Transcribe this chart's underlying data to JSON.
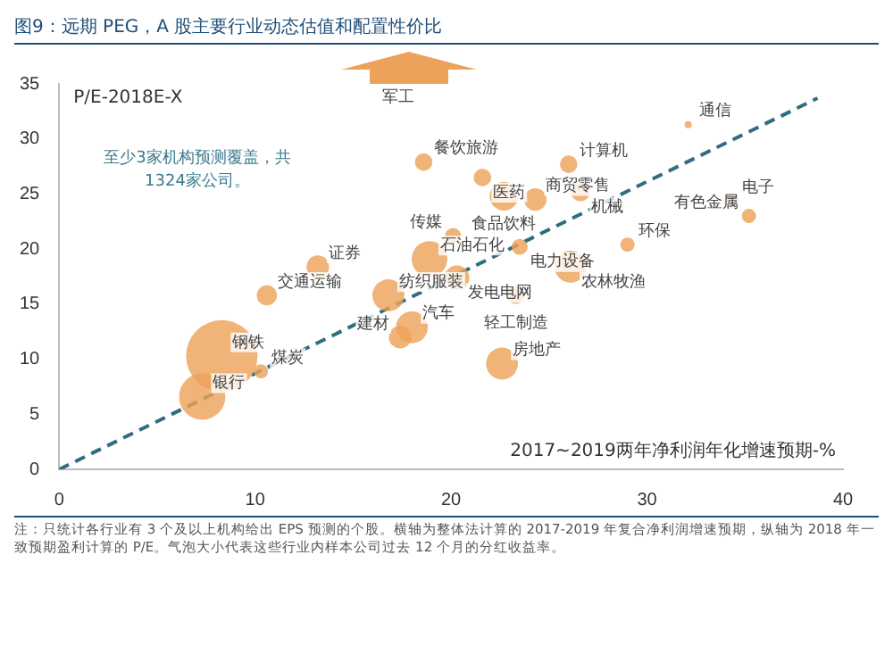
{
  "chart_data": {
    "type": "bubble",
    "title": "图9：远期 PEG，A 股主要行业动态估值和配置性价比",
    "xlabel": "2017~2019两年净利润年化增速预期-%",
    "ylabel": "P/E-2018E-X",
    "xlim": [
      0,
      40
    ],
    "xticks": [
      0,
      10,
      20,
      30,
      40
    ],
    "ylim": [
      0,
      35
    ],
    "yticks": [
      0,
      5,
      10,
      15,
      20,
      25,
      30,
      35
    ],
    "grid": false,
    "legend": false,
    "series": [
      {
        "type": "bubble",
        "color": "#eda25a",
        "x": [
          18.6,
          21.6,
          22.7,
          24.3,
          26.0,
          26.6,
          32.1,
          34.3,
          35.2,
          20.1,
          23.5,
          29.0,
          18.9,
          20.3,
          13.2,
          26.1,
          10.6,
          16.8,
          18.0,
          23.3,
          17.4,
          22.6,
          7.3,
          8.3,
          10.3
        ],
        "values": [
          27.9,
          26.5,
          24.8,
          24.5,
          27.7,
          25.2,
          31.3,
          24.4,
          23.0,
          21.2,
          20.2,
          20.4,
          19.1,
          17.4,
          18.4,
          18.4,
          15.8,
          15.8,
          12.9,
          15.8,
          12.0,
          9.6,
          6.6,
          10.3,
          8.9
        ],
        "sizes": [
          0.06,
          0.06,
          0.16,
          0.1,
          0.06,
          0.07,
          0.01,
          0.05,
          0.04,
          0.05,
          0.05,
          0.04,
          0.25,
          0.12,
          0.1,
          0.2,
          0.08,
          0.2,
          0.2,
          0.06,
          0.1,
          0.2,
          0.42,
          1,
          0.04
        ]
      },
      {
        "type": "line",
        "color": "#2e6e80",
        "line_style": "dashed",
        "x": [
          0,
          38.7
        ],
        "values": [
          0,
          33.7
        ]
      }
    ],
    "annotations": [
      "军工",
      "至少3家机构预测覆盖，共1324家公司。",
      "注：只统计各行业有 3 个及以上机构给出 EPS 预测的个股。横轴为整体法计算的 2017-2019 年复合净利润增速预期，纵轴为 2018 年一致预期盈利计算的 P/E。气泡大小代表这些行业内样本公司过去 12 个月的分红收益率。",
      {
        "text": "餐饮旅游",
        "x": 18.6,
        "y": 27.9
      },
      {
        "text": "医药",
        "x": 21.6,
        "y": 26.5
      },
      {
        "text": "食品饮料",
        "x": 22.7,
        "y": 24.8
      },
      {
        "text": "商贸零售",
        "x": 24.3,
        "y": 24.5
      },
      {
        "text": "计算机",
        "x": 26.0,
        "y": 27.7
      },
      {
        "text": "机械",
        "x": 26.6,
        "y": 25.2
      },
      {
        "text": "通信",
        "x": 32.1,
        "y": 31.3
      },
      {
        "text": "电子",
        "x": 34.3,
        "y": 24.4
      },
      {
        "text": "有色金属",
        "x": 35.2,
        "y": 23.0
      },
      {
        "text": "传媒",
        "x": 20.1,
        "y": 21.2
      },
      {
        "text": "电力设备",
        "x": 23.5,
        "y": 20.2
      },
      {
        "text": "环保",
        "x": 29.0,
        "y": 20.4
      },
      {
        "text": "石油石化",
        "x": 18.9,
        "y": 19.1
      },
      {
        "text": "发电电网",
        "x": 20.3,
        "y": 17.4
      },
      {
        "text": "证券",
        "x": 13.2,
        "y": 18.4
      },
      {
        "text": "农林牧渔",
        "x": 26.1,
        "y": 18.4
      },
      {
        "text": "交通运输",
        "x": 10.6,
        "y": 15.8
      },
      {
        "text": "纺织服装",
        "x": 16.8,
        "y": 15.8
      },
      {
        "text": "汽车",
        "x": 18.0,
        "y": 12.9
      },
      {
        "text": "轻工制造",
        "x": 23.3,
        "y": 15.8
      },
      {
        "text": "建材",
        "x": 17.4,
        "y": 12.0
      },
      {
        "text": "房地产",
        "x": 22.6,
        "y": 9.6
      },
      {
        "text": "银行",
        "x": 7.3,
        "y": 6.6
      },
      {
        "text": "钢铁",
        "x": 8.3,
        "y": 10.3
      },
      {
        "text": "煤炭",
        "x": 10.3,
        "y": 8.9
      }
    ]
  }
}
